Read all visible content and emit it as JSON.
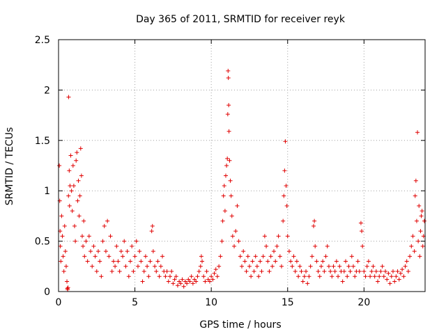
{
  "chart_data": {
    "type": "scatter",
    "title": "Day 365 of 2011, SRMTID for receiver reyk",
    "xlabel": "GPS time / hours",
    "ylabel": "SRMTID / TECUs",
    "xlim": [
      0,
      24
    ],
    "ylim": [
      0,
      2.5
    ],
    "xticks": [
      0,
      5,
      10,
      15,
      20
    ],
    "xtick_labels": [
      "0",
      "5",
      "10",
      "15",
      "20"
    ],
    "yticks": [
      0,
      0.5,
      1,
      1.5,
      2,
      2.5
    ],
    "ytick_labels": [
      "0",
      "0.5",
      "1",
      "1.5",
      "2",
      "2.5"
    ],
    "grid": true,
    "marker": "+",
    "marker_color": "#e00000",
    "series": [
      {
        "name": "SRMTID",
        "points": [
          [
            0.05,
            1.25
          ],
          [
            0.08,
            0.9
          ],
          [
            0.1,
            0.6
          ],
          [
            0.12,
            0.45
          ],
          [
            0.15,
            0.3
          ],
          [
            0.2,
            0.75
          ],
          [
            0.25,
            0.55
          ],
          [
            0.3,
            0.35
          ],
          [
            0.35,
            0.2
          ],
          [
            0.4,
            0.65
          ],
          [
            0.45,
            0.4
          ],
          [
            0.5,
            0.25
          ],
          [
            0.55,
            0.1
          ],
          [
            0.58,
            0.03
          ],
          [
            0.6,
            0.02
          ],
          [
            0.62,
            0.04
          ],
          [
            0.65,
            0.95
          ],
          [
            0.66,
            1.93
          ],
          [
            0.7,
            1.2
          ],
          [
            0.72,
            0.85
          ],
          [
            0.75,
            1.05
          ],
          [
            0.8,
            1.35
          ],
          [
            0.85,
            1.0
          ],
          [
            0.9,
            0.8
          ],
          [
            0.95,
            1.25
          ],
          [
            1.0,
            1.05
          ],
          [
            1.05,
            0.65
          ],
          [
            1.1,
            0.5
          ],
          [
            1.15,
            1.3
          ],
          [
            1.2,
            1.38
          ],
          [
            1.25,
            0.9
          ],
          [
            1.3,
            1.1
          ],
          [
            1.35,
            0.75
          ],
          [
            1.4,
            0.95
          ],
          [
            1.45,
            1.42
          ],
          [
            1.5,
            1.15
          ],
          [
            1.55,
            0.55
          ],
          [
            1.6,
            0.45
          ],
          [
            1.65,
            0.7
          ],
          [
            1.7,
            0.35
          ],
          [
            1.8,
            0.5
          ],
          [
            1.9,
            0.3
          ],
          [
            2.0,
            0.55
          ],
          [
            2.1,
            0.4
          ],
          [
            2.2,
            0.25
          ],
          [
            2.3,
            0.45
          ],
          [
            2.4,
            0.35
          ],
          [
            2.5,
            0.2
          ],
          [
            2.6,
            0.4
          ],
          [
            2.7,
            0.3
          ],
          [
            2.8,
            0.15
          ],
          [
            2.9,
            0.5
          ],
          [
            3.0,
            0.65
          ],
          [
            3.1,
            0.4
          ],
          [
            3.2,
            0.7
          ],
          [
            3.3,
            0.35
          ],
          [
            3.4,
            0.55
          ],
          [
            3.5,
            0.2
          ],
          [
            3.6,
            0.3
          ],
          [
            3.7,
            0.25
          ],
          [
            3.8,
            0.45
          ],
          [
            3.9,
            0.3
          ],
          [
            4.0,
            0.2
          ],
          [
            4.1,
            0.4
          ],
          [
            4.2,
            0.35
          ],
          [
            4.3,
            0.5
          ],
          [
            4.4,
            0.25
          ],
          [
            4.5,
            0.4
          ],
          [
            4.6,
            0.15
          ],
          [
            4.7,
            0.3
          ],
          [
            4.8,
            0.45
          ],
          [
            4.9,
            0.2
          ],
          [
            5.0,
            0.35
          ],
          [
            5.1,
            0.5
          ],
          [
            5.2,
            0.25
          ],
          [
            5.3,
            0.4
          ],
          [
            5.4,
            0.3
          ],
          [
            5.5,
            0.1
          ],
          [
            5.6,
            0.2
          ],
          [
            5.7,
            0.35
          ],
          [
            5.8,
            0.25
          ],
          [
            5.9,
            0.15
          ],
          [
            6.0,
            0.3
          ],
          [
            6.1,
            0.6
          ],
          [
            6.15,
            0.65
          ],
          [
            6.2,
            0.4
          ],
          [
            6.3,
            0.25
          ],
          [
            6.4,
            0.2
          ],
          [
            6.5,
            0.3
          ],
          [
            6.6,
            0.15
          ],
          [
            6.7,
            0.25
          ],
          [
            6.8,
            0.35
          ],
          [
            6.9,
            0.2
          ],
          [
            7.0,
            0.15
          ],
          [
            7.1,
            0.2
          ],
          [
            7.2,
            0.1
          ],
          [
            7.3,
            0.15
          ],
          [
            7.4,
            0.2
          ],
          [
            7.5,
            0.08
          ],
          [
            7.6,
            0.12
          ],
          [
            7.7,
            0.15
          ],
          [
            7.8,
            0.06
          ],
          [
            7.9,
            0.1
          ],
          [
            8.0,
            0.08
          ],
          [
            8.1,
            0.12
          ],
          [
            8.2,
            0.05
          ],
          [
            8.3,
            0.1
          ],
          [
            8.4,
            0.08
          ],
          [
            8.5,
            0.12
          ],
          [
            8.6,
            0.1
          ],
          [
            8.7,
            0.15
          ],
          [
            8.8,
            0.08
          ],
          [
            8.9,
            0.12
          ],
          [
            9.0,
            0.1
          ],
          [
            9.1,
            0.15
          ],
          [
            9.2,
            0.2
          ],
          [
            9.3,
            0.25
          ],
          [
            9.35,
            0.35
          ],
          [
            9.4,
            0.3
          ],
          [
            9.5,
            0.15
          ],
          [
            9.6,
            0.1
          ],
          [
            9.7,
            0.2
          ],
          [
            9.8,
            0.12
          ],
          [
            9.9,
            0.1
          ],
          [
            10.0,
            0.15
          ],
          [
            10.1,
            0.12
          ],
          [
            10.2,
            0.18
          ],
          [
            10.3,
            0.22
          ],
          [
            10.4,
            0.15
          ],
          [
            10.5,
            0.25
          ],
          [
            10.6,
            0.35
          ],
          [
            10.7,
            0.5
          ],
          [
            10.75,
            0.7
          ],
          [
            10.8,
            0.95
          ],
          [
            10.85,
            1.05
          ],
          [
            10.9,
            0.8
          ],
          [
            10.95,
            1.15
          ],
          [
            11.0,
            1.25
          ],
          [
            11.05,
            1.32
          ],
          [
            11.08,
            1.76
          ],
          [
            11.1,
            2.19
          ],
          [
            11.12,
            2.12
          ],
          [
            11.14,
            1.85
          ],
          [
            11.16,
            1.59
          ],
          [
            11.2,
            1.3
          ],
          [
            11.25,
            1.1
          ],
          [
            11.3,
            0.95
          ],
          [
            11.35,
            0.75
          ],
          [
            11.4,
            0.55
          ],
          [
            11.5,
            0.45
          ],
          [
            11.6,
            0.6
          ],
          [
            11.7,
            0.85
          ],
          [
            11.8,
            0.5
          ],
          [
            11.9,
            0.35
          ],
          [
            12.0,
            0.25
          ],
          [
            12.1,
            0.4
          ],
          [
            12.2,
            0.3
          ],
          [
            12.3,
            0.2
          ],
          [
            12.4,
            0.35
          ],
          [
            12.5,
            0.25
          ],
          [
            12.6,
            0.15
          ],
          [
            12.7,
            0.3
          ],
          [
            12.8,
            0.2
          ],
          [
            12.9,
            0.35
          ],
          [
            13.0,
            0.25
          ],
          [
            13.1,
            0.15
          ],
          [
            13.2,
            0.3
          ],
          [
            13.3,
            0.2
          ],
          [
            13.4,
            0.35
          ],
          [
            13.5,
            0.55
          ],
          [
            13.6,
            0.45
          ],
          [
            13.7,
            0.3
          ],
          [
            13.8,
            0.2
          ],
          [
            13.9,
            0.35
          ],
          [
            14.0,
            0.25
          ],
          [
            14.1,
            0.4
          ],
          [
            14.2,
            0.3
          ],
          [
            14.3,
            0.45
          ],
          [
            14.4,
            0.55
          ],
          [
            14.5,
            0.35
          ],
          [
            14.6,
            0.25
          ],
          [
            14.7,
            0.7
          ],
          [
            14.75,
            0.95
          ],
          [
            14.8,
            1.2
          ],
          [
            14.85,
            1.49
          ],
          [
            14.9,
            1.05
          ],
          [
            14.95,
            0.85
          ],
          [
            15.0,
            0.55
          ],
          [
            15.1,
            0.4
          ],
          [
            15.2,
            0.3
          ],
          [
            15.3,
            0.25
          ],
          [
            15.4,
            0.35
          ],
          [
            15.5,
            0.2
          ],
          [
            15.6,
            0.3
          ],
          [
            15.7,
            0.15
          ],
          [
            15.8,
            0.25
          ],
          [
            15.9,
            0.2
          ],
          [
            16.0,
            0.1
          ],
          [
            16.1,
            0.15
          ],
          [
            16.2,
            0.2
          ],
          [
            16.3,
            0.08
          ],
          [
            16.4,
            0.15
          ],
          [
            16.5,
            0.25
          ],
          [
            16.6,
            0.35
          ],
          [
            16.7,
            0.65
          ],
          [
            16.75,
            0.7
          ],
          [
            16.8,
            0.45
          ],
          [
            16.9,
            0.3
          ],
          [
            17.0,
            0.2
          ],
          [
            17.1,
            0.15
          ],
          [
            17.2,
            0.25
          ],
          [
            17.3,
            0.3
          ],
          [
            17.4,
            0.2
          ],
          [
            17.5,
            0.35
          ],
          [
            17.6,
            0.45
          ],
          [
            17.7,
            0.25
          ],
          [
            17.8,
            0.2
          ],
          [
            17.9,
            0.15
          ],
          [
            18.0,
            0.25
          ],
          [
            18.1,
            0.2
          ],
          [
            18.2,
            0.3
          ],
          [
            18.3,
            0.15
          ],
          [
            18.4,
            0.25
          ],
          [
            18.5,
            0.2
          ],
          [
            18.6,
            0.1
          ],
          [
            18.7,
            0.2
          ],
          [
            18.8,
            0.3
          ],
          [
            18.9,
            0.15
          ],
          [
            19.0,
            0.25
          ],
          [
            19.1,
            0.2
          ],
          [
            19.2,
            0.35
          ],
          [
            19.3,
            0.25
          ],
          [
            19.4,
            0.15
          ],
          [
            19.5,
            0.2
          ],
          [
            19.6,
            0.3
          ],
          [
            19.7,
            0.2
          ],
          [
            19.8,
            0.68
          ],
          [
            19.85,
            0.6
          ],
          [
            19.9,
            0.45
          ],
          [
            20.0,
            0.2
          ],
          [
            20.1,
            0.15
          ],
          [
            20.2,
            0.25
          ],
          [
            20.3,
            0.3
          ],
          [
            20.4,
            0.15
          ],
          [
            20.5,
            0.2
          ],
          [
            20.6,
            0.25
          ],
          [
            20.7,
            0.15
          ],
          [
            20.8,
            0.2
          ],
          [
            20.9,
            0.1
          ],
          [
            21.0,
            0.15
          ],
          [
            21.1,
            0.2
          ],
          [
            21.2,
            0.25
          ],
          [
            21.3,
            0.15
          ],
          [
            21.4,
            0.2
          ],
          [
            21.5,
            0.12
          ],
          [
            21.6,
            0.18
          ],
          [
            21.7,
            0.08
          ],
          [
            21.8,
            0.15
          ],
          [
            21.9,
            0.2
          ],
          [
            22.0,
            0.1
          ],
          [
            22.1,
            0.15
          ],
          [
            22.2,
            0.2
          ],
          [
            22.3,
            0.12
          ],
          [
            22.4,
            0.18
          ],
          [
            22.5,
            0.22
          ],
          [
            22.6,
            0.15
          ],
          [
            22.7,
            0.25
          ],
          [
            22.8,
            0.3
          ],
          [
            22.9,
            0.2
          ],
          [
            23.0,
            0.35
          ],
          [
            23.1,
            0.45
          ],
          [
            23.2,
            0.55
          ],
          [
            23.3,
            0.4
          ],
          [
            23.35,
            0.95
          ],
          [
            23.4,
            1.1
          ],
          [
            23.45,
            0.7
          ],
          [
            23.5,
            1.58
          ],
          [
            23.55,
            0.5
          ],
          [
            23.6,
            0.85
          ],
          [
            23.65,
            0.35
          ],
          [
            23.7,
            0.6
          ],
          [
            23.75,
            0.75
          ],
          [
            23.8,
            0.8
          ],
          [
            23.85,
            0.45
          ],
          [
            23.9,
            0.55
          ],
          [
            23.95,
            0.7
          ]
        ]
      }
    ]
  }
}
